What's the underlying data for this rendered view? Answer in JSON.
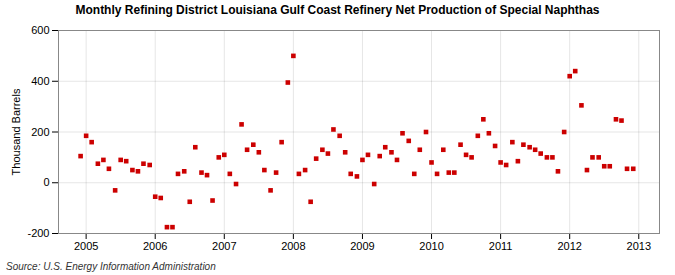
{
  "chart_data": {
    "type": "scatter",
    "title": "Monthly Refining District Louisiana Gulf Coast Refinery Net Production of Special Naphthas",
    "ylabel": "Thousand Barrels",
    "source": "Source: U.S. Energy Information Administration",
    "color": "#cc0000",
    "marker": "square",
    "grid": true,
    "xlim": [
      2004.6,
      2013.3
    ],
    "xticks": [
      2005,
      2006,
      2007,
      2008,
      2009,
      2010,
      2011,
      2012,
      2013
    ],
    "ylim": [
      -200,
      600
    ],
    "yticks": [
      -200,
      0,
      200,
      400,
      600
    ],
    "x": [
      2004.92,
      2005.0,
      2005.08,
      2005.17,
      2005.25,
      2005.33,
      2005.42,
      2005.5,
      2005.58,
      2005.67,
      2005.75,
      2005.83,
      2005.92,
      2006.0,
      2006.08,
      2006.17,
      2006.25,
      2006.33,
      2006.42,
      2006.5,
      2006.58,
      2006.67,
      2006.75,
      2006.83,
      2006.92,
      2007.0,
      2007.08,
      2007.17,
      2007.25,
      2007.33,
      2007.42,
      2007.5,
      2007.58,
      2007.67,
      2007.75,
      2007.83,
      2007.92,
      2008.0,
      2008.08,
      2008.17,
      2008.25,
      2008.33,
      2008.42,
      2008.5,
      2008.58,
      2008.67,
      2008.75,
      2008.83,
      2008.92,
      2009.0,
      2009.08,
      2009.17,
      2009.25,
      2009.33,
      2009.42,
      2009.5,
      2009.58,
      2009.67,
      2009.75,
      2009.83,
      2009.92,
      2010.0,
      2010.08,
      2010.17,
      2010.25,
      2010.33,
      2010.42,
      2010.5,
      2010.58,
      2010.67,
      2010.75,
      2010.83,
      2010.92,
      2011.0,
      2011.08,
      2011.17,
      2011.25,
      2011.33,
      2011.42,
      2011.5,
      2011.58,
      2011.67,
      2011.75,
      2011.83,
      2011.92,
      2012.0,
      2012.08,
      2012.17,
      2012.25,
      2012.33,
      2012.42,
      2012.5,
      2012.58,
      2012.67,
      2012.75,
      2012.83,
      2012.92
    ],
    "values": [
      105,
      185,
      160,
      75,
      90,
      55,
      -30,
      90,
      85,
      50,
      45,
      75,
      70,
      -55,
      -60,
      -175,
      -175,
      35,
      45,
      -75,
      140,
      40,
      30,
      -70,
      100,
      110,
      35,
      -5,
      230,
      130,
      150,
      120,
      50,
      -30,
      40,
      160,
      395,
      500,
      35,
      50,
      -75,
      95,
      130,
      115,
      210,
      185,
      120,
      35,
      25,
      90,
      110,
      -5,
      105,
      140,
      120,
      90,
      195,
      165,
      35,
      130,
      200,
      80,
      35,
      130,
      40,
      40,
      150,
      110,
      100,
      185,
      250,
      195,
      145,
      80,
      70,
      160,
      85,
      150,
      140,
      130,
      115,
      100,
      100,
      45,
      200,
      420,
      440,
      305,
      50,
      100,
      100,
      65,
      65,
      250,
      245,
      55,
      55
    ]
  }
}
